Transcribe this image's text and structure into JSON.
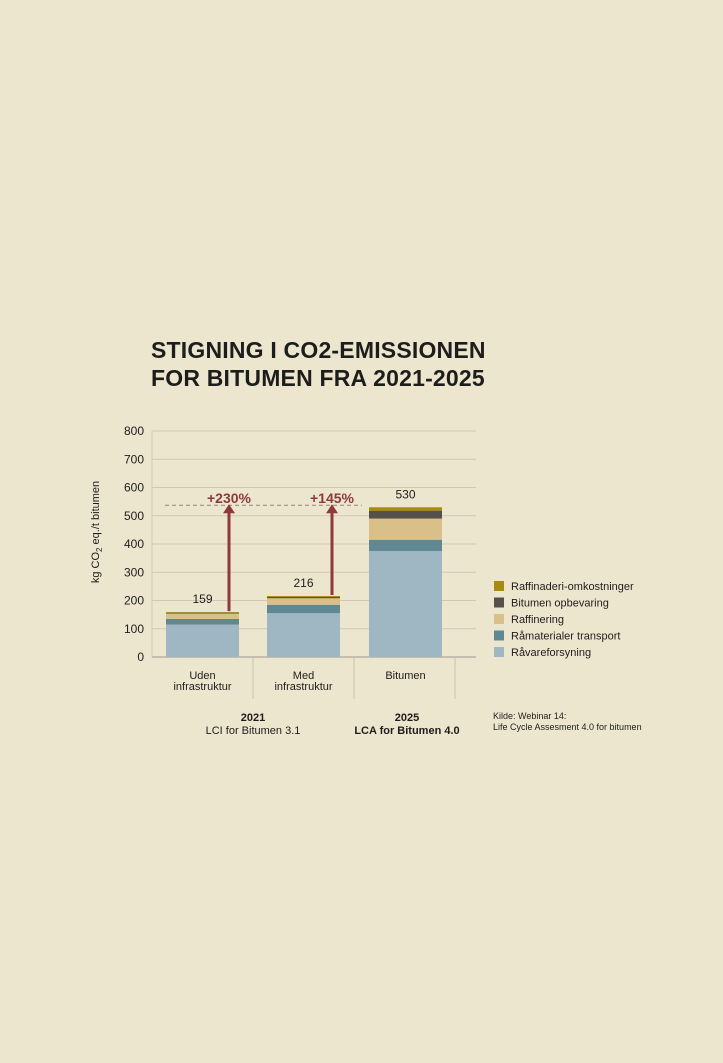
{
  "title": {
    "line1": "STIGNING I CO2-EMISSIONEN",
    "line2": "FOR BITUMEN FRA 2021-2025"
  },
  "chart_data": {
    "type": "bar",
    "stacked": true,
    "ylim": [
      0,
      800
    ],
    "yticks": [
      0,
      100,
      200,
      300,
      400,
      500,
      600,
      700,
      800
    ],
    "ylabel": {
      "pre": "kg CO",
      "sub": "2",
      "post": " eq./t bitumen"
    },
    "categories": [
      {
        "line1": "Uden",
        "line2": "infrastruktur"
      },
      {
        "line1": "Med",
        "line2": "infrastruktur"
      },
      {
        "line1": "Bitumen",
        "line2": ""
      }
    ],
    "totals": [
      159,
      216,
      530
    ],
    "total_labels": [
      "159",
      "216",
      "530"
    ],
    "series": [
      {
        "name": "Råvareforsyning",
        "color": "#9fb6c3",
        "values": [
          115,
          155,
          375
        ]
      },
      {
        "name": "Råmaterialer transport",
        "color": "#5f8893",
        "values": [
          20,
          30,
          40
        ]
      },
      {
        "name": "Raffinering",
        "color": "#d8c088",
        "values": [
          19,
          23,
          75
        ]
      },
      {
        "name": "Bitumen opbevaring",
        "color": "#55504b",
        "values": [
          3,
          5,
          28
        ]
      },
      {
        "name": "Raffinaderi-omkostninger",
        "color": "#a88a12",
        "values": [
          2,
          3,
          12
        ]
      }
    ],
    "reference_line": 530,
    "annotations": [
      {
        "category_index": 0,
        "label": "+230%",
        "from": 159,
        "to": 530
      },
      {
        "category_index": 1,
        "label": "+145%",
        "from": 216,
        "to": 530
      }
    ],
    "arrow_color": "#8e3a3a",
    "groups": [
      {
        "year": "2021",
        "subtitle": "LCI for Bitumen 3.1"
      },
      {
        "year": "2025",
        "subtitle": "LCA for Bitumen 4.0"
      }
    ],
    "legend_order": [
      "Raffinaderi-omkostninger",
      "Bitumen opbevaring",
      "Raffinering",
      "Råmaterialer transport",
      "Råvareforsyning"
    ]
  },
  "source": {
    "line1": "Kilde: Webinar 14:",
    "line2": "Life Cycle Assesment 4.0 for bitumen"
  }
}
